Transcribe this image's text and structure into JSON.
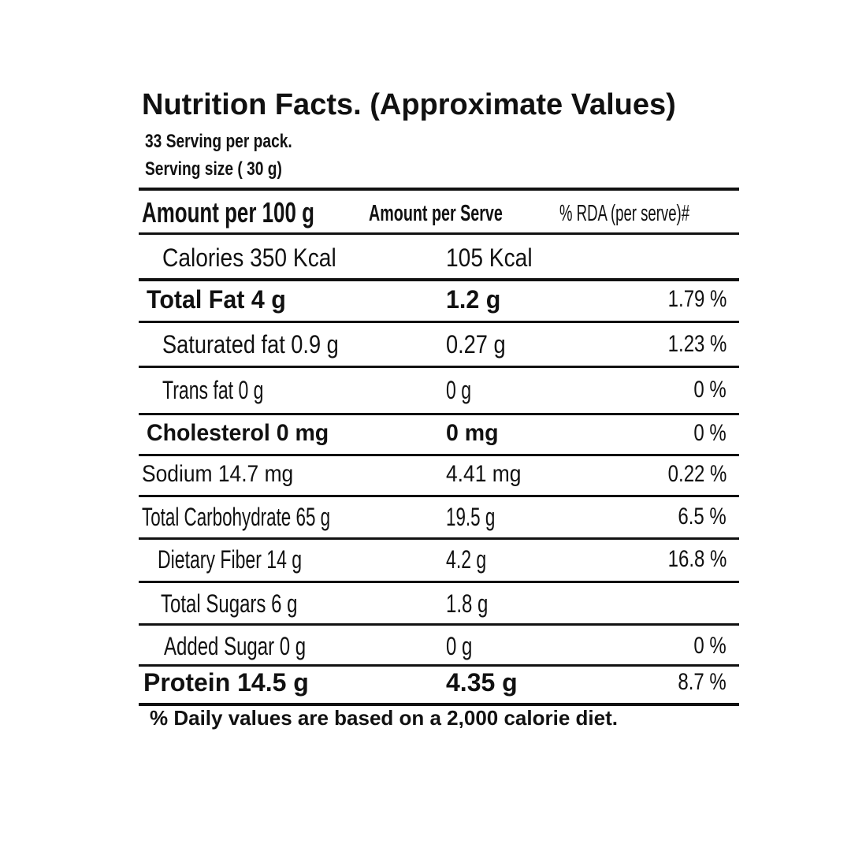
{
  "header": {
    "title": "Nutrition Facts. (Approximate Values)",
    "servings": "33 Serving per pack.",
    "serving_size": "Serving size ( 30 g)"
  },
  "table": {
    "columns": [
      "Amount per 100 g",
      "Amount per Serve",
      "% RDA (per serve)#"
    ],
    "rows": [
      {
        "per_100g": "Calories 350 Kcal",
        "per_serve": "105 Kcal"
      },
      {
        "per_100g": "Total Fat 4 g",
        "per_serve": "1.2 g",
        "rda": "1.79 %"
      },
      {
        "per_100g": "Saturated fat 0.9 g",
        "per_serve": "0.27 g",
        "rda": "1.23 %"
      },
      {
        "per_100g": "Trans fat  0 g",
        "per_serve": "0 g",
        "rda": "0 %"
      },
      {
        "per_100g": "Cholesterol 0 mg",
        "per_serve": "0 mg",
        "rda": "0 %"
      },
      {
        "per_100g": "Sodium 14.7 mg",
        "per_serve": "4.41 mg",
        "rda": "0.22 %"
      },
      {
        "per_100g": "Total Carbohydrate 65 g",
        "per_serve": "19.5 g",
        "rda": "6.5 %"
      },
      {
        "per_100g": "Dietary Fiber 14 g",
        "per_serve": "4.2 g",
        "rda": "16.8 %"
      },
      {
        "per_100g": "Total Sugars 6 g",
        "per_serve": "1.8 g"
      },
      {
        "per_100g": "Added Sugar 0 g",
        "per_serve": "0 g",
        "rda": "0 %"
      },
      {
        "per_100g": "Protein 14.5 g",
        "per_serve": "4.35 g",
        "rda": "8.7 %"
      }
    ]
  },
  "footnote": "% Daily values are based on a 2,000 calorie diet."
}
